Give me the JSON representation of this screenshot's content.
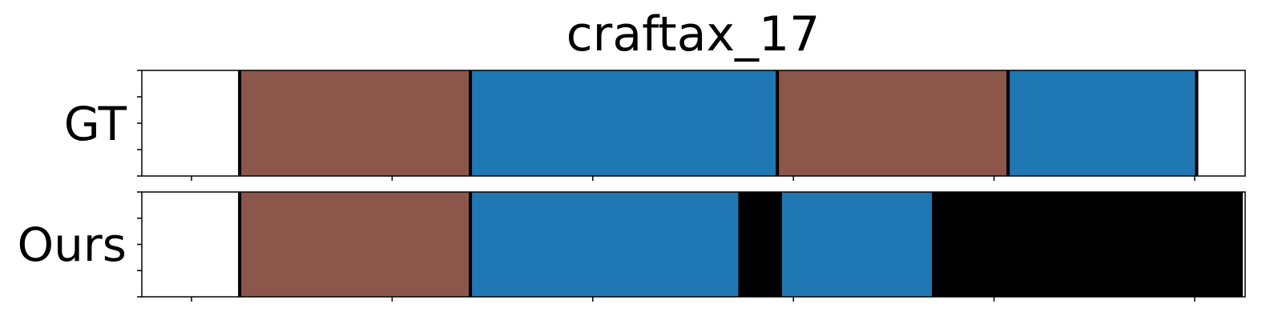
{
  "chart_data": {
    "type": "segmentation_timeline",
    "title": "craftax_17",
    "xlim": [
      0,
      1
    ],
    "rows": [
      {
        "label": "GT",
        "segments": [
          {
            "start": 0.048,
            "end": 0.278,
            "color": "#8c564b"
          },
          {
            "start": 0.278,
            "end": 0.584,
            "color": "#1f77b4"
          },
          {
            "start": 0.584,
            "end": 0.814,
            "color": "#8c564b"
          },
          {
            "start": 0.814,
            "end": 1.002,
            "color": "#1f77b4"
          }
        ],
        "boundaries": [
          0.048,
          0.278,
          0.584,
          0.814,
          1.002
        ]
      },
      {
        "label": "Ours",
        "segments": [
          {
            "start": 0.048,
            "end": 0.278,
            "color": "#8c564b"
          },
          {
            "start": 0.278,
            "end": 0.545,
            "color": "#1f77b4"
          },
          {
            "start": 0.545,
            "end": 0.587,
            "color": "#000000"
          },
          {
            "start": 0.587,
            "end": 0.738,
            "color": "#1f77b4"
          },
          {
            "start": 0.738,
            "end": 1.048,
            "color": "#000000"
          }
        ],
        "boundaries": [
          0.048,
          0.278,
          0.587
        ]
      }
    ],
    "x_ticks": [
      0.0,
      0.2,
      0.4,
      0.6,
      0.8,
      1.0
    ],
    "y_ticks": [
      0,
      0.25,
      0.5,
      0.75,
      1
    ],
    "colors": {
      "brown": "#8c564b",
      "blue": "#1f77b4",
      "black": "#000000"
    }
  }
}
